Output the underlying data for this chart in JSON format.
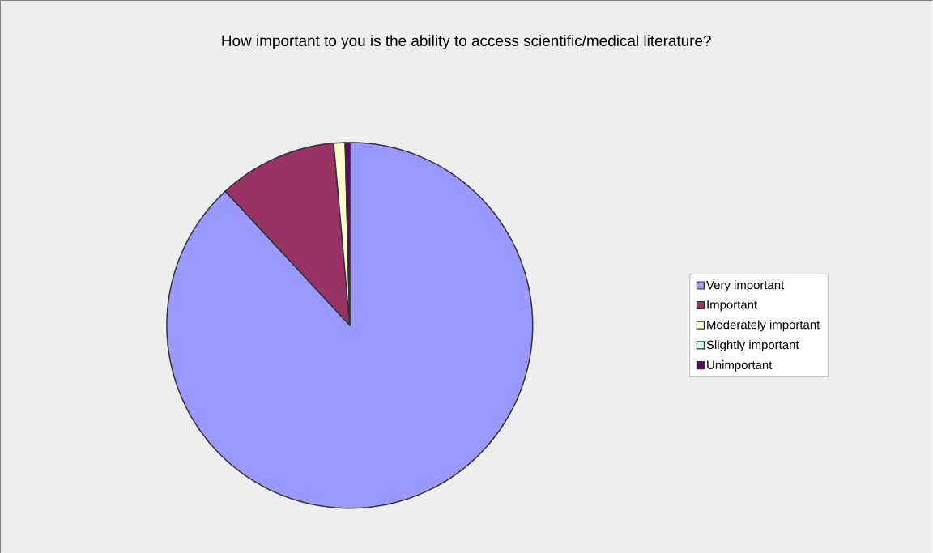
{
  "chart_data": {
    "type": "pie",
    "title": "How important to you is the ability to access scientific/medical literature?",
    "categories": [
      "Very important",
      "Important",
      "Moderately important",
      "Slightly important",
      "Unimportant"
    ],
    "values": [
      88.1,
      10.5,
      1.0,
      0,
      0.4
    ],
    "colors": [
      "#9999ff",
      "#993366",
      "#ffffcc",
      "#ccffff",
      "#660066"
    ],
    "legend": "right"
  }
}
